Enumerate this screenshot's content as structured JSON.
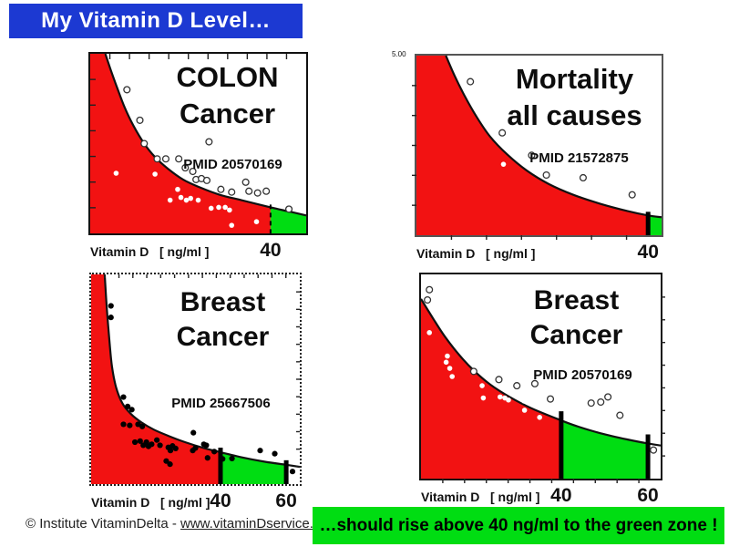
{
  "slide": {
    "title": "My Vitamin D Level…",
    "footer": {
      "copyright": "© Institute VitaminDelta - ",
      "link": "www.vitaminDservice.com"
    },
    "banner": "…should rise above 40 ng/ml to the green zone !",
    "colors": {
      "banner_blue": "#1c39d2",
      "zone_red": "#f21212",
      "zone_green": "#00dd12",
      "curve_black": "#111111",
      "banner_text_white": "#ffffff"
    }
  },
  "chart_data": [
    {
      "id": "colon-cancer",
      "type": "area",
      "title_lines": [
        "COLON",
        "Cancer"
      ],
      "pmid": "PMID 20570169",
      "xlabel": "Vitamin D   [ ng/ml ]",
      "x_tick_labels": [
        "40"
      ],
      "markers": [
        {
          "value": 40,
          "frac": 0.835,
          "style": "dashed",
          "overshoot": 3
        }
      ],
      "green_zones": [
        [
          0.835,
          1
        ]
      ],
      "curve": [
        [
          0.07,
          0
        ],
        [
          0.095,
          0.09
        ],
        [
          0.125,
          0.19
        ],
        [
          0.16,
          0.3
        ],
        [
          0.2,
          0.4
        ],
        [
          0.25,
          0.5
        ],
        [
          0.3,
          0.575
        ],
        [
          0.36,
          0.64
        ],
        [
          0.43,
          0.7
        ],
        [
          0.51,
          0.745
        ],
        [
          0.6,
          0.785
        ],
        [
          0.7,
          0.815
        ],
        [
          0.835,
          0.855
        ],
        [
          0.92,
          0.878
        ],
        [
          1,
          0.9
        ]
      ],
      "points_open": [
        [
          0.17,
          0.2
        ],
        [
          0.23,
          0.37
        ],
        [
          0.25,
          0.5
        ],
        [
          0.55,
          0.49
        ],
        [
          0.31,
          0.585
        ],
        [
          0.35,
          0.585
        ],
        [
          0.41,
          0.585
        ],
        [
          0.44,
          0.635
        ],
        [
          0.475,
          0.655
        ],
        [
          0.49,
          0.7
        ],
        [
          0.515,
          0.695
        ],
        [
          0.54,
          0.705
        ],
        [
          0.605,
          0.755
        ],
        [
          0.655,
          0.77
        ],
        [
          0.72,
          0.715
        ],
        [
          0.735,
          0.765
        ],
        [
          0.775,
          0.775
        ],
        [
          0.815,
          0.765
        ],
        [
          0.92,
          0.865
        ]
      ],
      "points_white": [
        [
          0.12,
          0.665
        ],
        [
          0.3,
          0.67
        ],
        [
          0.37,
          0.815
        ],
        [
          0.405,
          0.755
        ],
        [
          0.42,
          0.8
        ],
        [
          0.445,
          0.815
        ],
        [
          0.465,
          0.805
        ],
        [
          0.5,
          0.815
        ],
        [
          0.56,
          0.86
        ],
        [
          0.595,
          0.855
        ],
        [
          0.625,
          0.855
        ],
        [
          0.645,
          0.87
        ],
        [
          0.655,
          0.955
        ],
        [
          0.77,
          0.935
        ]
      ],
      "points_black": [],
      "ticks": [
        {
          "edge": "top",
          "n": 10,
          "len": 6,
          "dir": "in"
        },
        {
          "edge": "left",
          "n": 6,
          "len": 6,
          "dir": "in"
        }
      ]
    },
    {
      "id": "mortality-all-causes",
      "type": "area",
      "title_lines": [
        "Mortality",
        "all causes"
      ],
      "pmid": "PMID 21572875",
      "xlabel": "Vitamin D   [ ng/ml ]",
      "x_tick_labels": [
        "40"
      ],
      "y_tick_label": "5.00",
      "markers": [
        {
          "value": 40,
          "frac": 0.945,
          "style": "solid",
          "overshoot": 4
        }
      ],
      "green_zones": [
        [
          0.945,
          1
        ]
      ],
      "curve": [
        [
          0.12,
          0
        ],
        [
          0.155,
          0.11
        ],
        [
          0.195,
          0.22
        ],
        [
          0.245,
          0.34
        ],
        [
          0.3,
          0.45
        ],
        [
          0.37,
          0.55
        ],
        [
          0.45,
          0.64
        ],
        [
          0.54,
          0.715
        ],
        [
          0.64,
          0.775
        ],
        [
          0.75,
          0.825
        ],
        [
          0.86,
          0.865
        ],
        [
          0.945,
          0.89
        ],
        [
          1,
          0.9
        ]
      ],
      "points_open": [
        [
          0.22,
          0.145
        ],
        [
          0.35,
          0.43
        ],
        [
          0.47,
          0.555
        ],
        [
          0.53,
          0.665
        ],
        [
          0.68,
          0.68
        ],
        [
          0.88,
          0.775
        ]
      ],
      "points_white": [
        [
          0.355,
          0.605
        ],
        [
          0.685,
          0.755
        ]
      ],
      "points_black": [],
      "ticks": [
        {
          "edge": "left",
          "n": 5,
          "len": 5,
          "dir": "out"
        },
        {
          "edge": "bottom",
          "n": 6,
          "len": 5,
          "dir": "out"
        }
      ]
    },
    {
      "id": "breast-cancer-study1",
      "type": "area",
      "title_lines": [
        "Breast",
        "Cancer"
      ],
      "pmid": "PMID 25667506",
      "xlabel": "Vitamin D   [ ng/ml ]",
      "x_tick_labels": [
        "40",
        "60"
      ],
      "markers": [
        {
          "value": 40,
          "frac": 0.62,
          "style": "solid",
          "overshoot": 5
        },
        {
          "value": 60,
          "frac": 0.935,
          "style": "solid",
          "overshoot": 5
        }
      ],
      "green_zones": [
        [
          0.62,
          0.935
        ]
      ],
      "curve": [
        [
          0.065,
          0
        ],
        [
          0.075,
          0.16
        ],
        [
          0.088,
          0.32
        ],
        [
          0.1,
          0.44
        ],
        [
          0.12,
          0.54
        ],
        [
          0.15,
          0.615
        ],
        [
          0.19,
          0.665
        ],
        [
          0.24,
          0.705
        ],
        [
          0.3,
          0.74
        ],
        [
          0.37,
          0.77
        ],
        [
          0.45,
          0.8
        ],
        [
          0.54,
          0.828
        ],
        [
          0.62,
          0.848
        ],
        [
          0.72,
          0.872
        ],
        [
          0.83,
          0.893
        ],
        [
          0.935,
          0.908
        ],
        [
          1,
          0.918
        ]
      ],
      "points_open": [],
      "points_white": [],
      "points_black": [
        [
          0.095,
          0.15
        ],
        [
          0.095,
          0.205
        ],
        [
          0.155,
          0.585
        ],
        [
          0.175,
          0.63
        ],
        [
          0.195,
          0.645
        ],
        [
          0.155,
          0.715
        ],
        [
          0.185,
          0.72
        ],
        [
          0.225,
          0.715
        ],
        [
          0.245,
          0.725
        ],
        [
          0.21,
          0.8
        ],
        [
          0.235,
          0.795
        ],
        [
          0.25,
          0.815
        ],
        [
          0.265,
          0.8
        ],
        [
          0.275,
          0.82
        ],
        [
          0.29,
          0.81
        ],
        [
          0.315,
          0.79
        ],
        [
          0.33,
          0.815
        ],
        [
          0.37,
          0.825
        ],
        [
          0.38,
          0.84
        ],
        [
          0.39,
          0.818
        ],
        [
          0.405,
          0.83
        ],
        [
          0.36,
          0.89
        ],
        [
          0.378,
          0.905
        ],
        [
          0.49,
          0.755
        ],
        [
          0.487,
          0.84
        ],
        [
          0.5,
          0.828
        ],
        [
          0.54,
          0.81
        ],
        [
          0.552,
          0.815
        ],
        [
          0.558,
          0.875
        ],
        [
          0.59,
          0.845
        ],
        [
          0.63,
          0.88
        ],
        [
          0.675,
          0.878
        ],
        [
          0.81,
          0.84
        ],
        [
          0.88,
          0.855
        ],
        [
          0.965,
          0.94
        ]
      ],
      "ticks": [
        {
          "edge": "top",
          "n": 14,
          "len": 4,
          "dir": "in"
        },
        {
          "edge": "right",
          "n": 11,
          "len": 4,
          "dir": "in"
        }
      ]
    },
    {
      "id": "breast-cancer-study2",
      "type": "area",
      "title_lines": [
        "Breast",
        "Cancer"
      ],
      "pmid": "PMID 20570169",
      "xlabel": "Vitamin D   [ ng/ml ]",
      "x_tick_labels": [
        "40",
        "60"
      ],
      "markers": [
        {
          "value": 40,
          "frac": 0.585,
          "style": "solid",
          "overshoot": 10
        },
        {
          "value": 60,
          "frac": 0.947,
          "style": "solid",
          "overshoot": 10
        }
      ],
      "green_zones": [
        [
          0.585,
          0.947
        ]
      ],
      "curve": [
        [
          0,
          0.12
        ],
        [
          0.05,
          0.215
        ],
        [
          0.1,
          0.305
        ],
        [
          0.16,
          0.395
        ],
        [
          0.22,
          0.47
        ],
        [
          0.29,
          0.54
        ],
        [
          0.37,
          0.6
        ],
        [
          0.46,
          0.655
        ],
        [
          0.585,
          0.715
        ],
        [
          0.65,
          0.743
        ],
        [
          0.75,
          0.778
        ],
        [
          0.86,
          0.808
        ],
        [
          0.947,
          0.828
        ],
        [
          1,
          0.838
        ]
      ],
      "points_open": [
        [
          0.035,
          0.075
        ],
        [
          0.027,
          0.125
        ],
        [
          0.22,
          0.475
        ],
        [
          0.325,
          0.515
        ],
        [
          0.4,
          0.545
        ],
        [
          0.475,
          0.535
        ],
        [
          0.54,
          0.61
        ],
        [
          0.71,
          0.63
        ],
        [
          0.75,
          0.625
        ],
        [
          0.78,
          0.6
        ],
        [
          0.83,
          0.69
        ],
        [
          0.97,
          0.86
        ]
      ],
      "points_white": [
        [
          0.035,
          0.285
        ],
        [
          0.11,
          0.4
        ],
        [
          0.105,
          0.43
        ],
        [
          0.12,
          0.46
        ],
        [
          0.13,
          0.5
        ],
        [
          0.255,
          0.545
        ],
        [
          0.26,
          0.605
        ],
        [
          0.33,
          0.6
        ],
        [
          0.35,
          0.605
        ],
        [
          0.365,
          0.615
        ],
        [
          0.4,
          0.565
        ],
        [
          0.43,
          0.62
        ],
        [
          0.432,
          0.665
        ],
        [
          0.495,
          0.7
        ],
        [
          0.54,
          0.655
        ]
      ],
      "points_black": [],
      "ticks": [
        {
          "edge": "right",
          "n": 8,
          "len": 5,
          "dir": "out"
        },
        {
          "edge": "bottom",
          "n": 10,
          "len": 5,
          "dir": "out"
        }
      ]
    }
  ]
}
